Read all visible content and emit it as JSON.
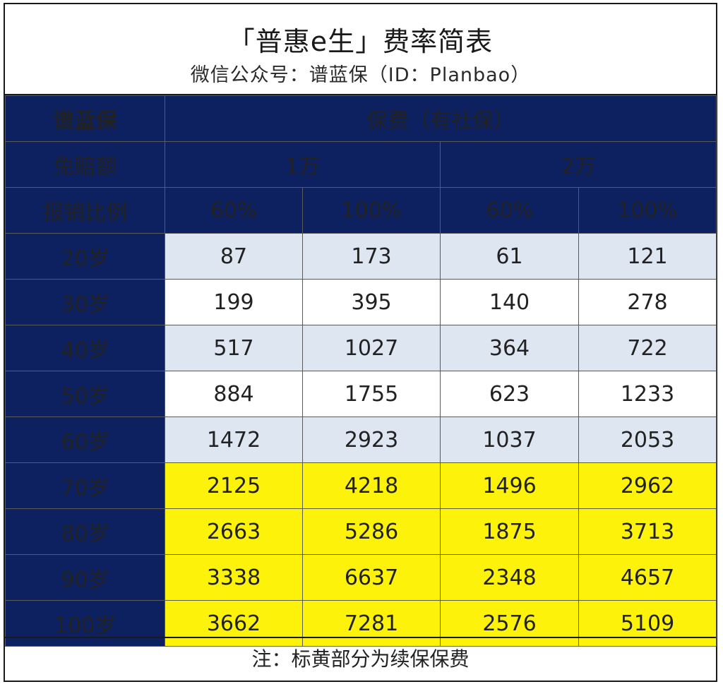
{
  "title": "「普惠e生」费率简表",
  "subtitle": "微信公众号：谱蓝保（ID：Planbao）",
  "header": {
    "brand": "谱蓝保",
    "premium_label": "保费（有社保）",
    "deductible_label": "免赔额",
    "deductibles": [
      "1万",
      "2万"
    ],
    "ratio_label": "报销比例",
    "ratios": [
      "60%",
      "100%",
      "60%",
      "100%"
    ]
  },
  "colors": {
    "header_navy": "#0d2160",
    "brand_orange": "#f5a23a",
    "row_light_blue": "#dde6f1",
    "renewal_yellow": "#fcf20a"
  },
  "rows": [
    {
      "age": "20岁",
      "values": [
        "87",
        "173",
        "61",
        "121"
      ],
      "style": "blue"
    },
    {
      "age": "30岁",
      "values": [
        "199",
        "395",
        "140",
        "278"
      ],
      "style": "white"
    },
    {
      "age": "40岁",
      "values": [
        "517",
        "1027",
        "364",
        "722"
      ],
      "style": "blue"
    },
    {
      "age": "50岁",
      "values": [
        "884",
        "1755",
        "623",
        "1233"
      ],
      "style": "white"
    },
    {
      "age": "60岁",
      "values": [
        "1472",
        "2923",
        "1037",
        "2053"
      ],
      "style": "blue"
    },
    {
      "age": "70岁",
      "values": [
        "2125",
        "4218",
        "1496",
        "2962"
      ],
      "style": "yellow"
    },
    {
      "age": "80岁",
      "values": [
        "2663",
        "5286",
        "1875",
        "3713"
      ],
      "style": "yellow"
    },
    {
      "age": "90岁",
      "values": [
        "3338",
        "6637",
        "2348",
        "4657"
      ],
      "style": "yellow"
    },
    {
      "age": "100岁",
      "values": [
        "3662",
        "7281",
        "2576",
        "5109"
      ],
      "style": "yellow"
    }
  ],
  "footer_note": "注：标黄部分为续保保费"
}
